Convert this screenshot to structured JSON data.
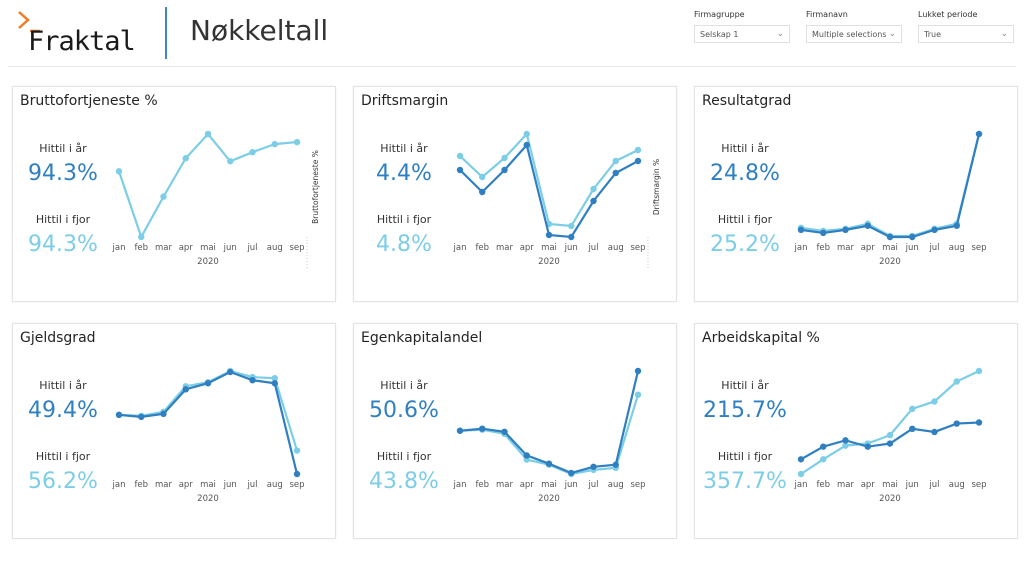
{
  "header": {
    "logo": "Fraktal",
    "title": "Nøkkeltall"
  },
  "slicers": [
    {
      "label": "Firmagruppe",
      "value": "Selskap 1"
    },
    {
      "label": "Firmanavn",
      "value": "Multiple selections"
    },
    {
      "label": "Lukket periode",
      "value": "True"
    }
  ],
  "colors": {
    "this_year": "#2F7FC1",
    "last_year": "#7CCDE6",
    "accent": "#F07C24"
  },
  "kpi_labels": {
    "this_year": "Hittil i år",
    "last_year": "Hittil i fjor"
  },
  "chart_data": [
    {
      "type": "line",
      "title": "Bruttofortjeneste %",
      "ylabel": "Bruttofortjeneste %",
      "xlabel": "2020",
      "categories": [
        "jan",
        "feb",
        "mar",
        "apr",
        "mai",
        "jun",
        "jul",
        "aug",
        "sep"
      ],
      "kpi": {
        "this_year": "94.3%",
        "last_year": "94.3%"
      },
      "series": [
        {
          "values": [
            330,
            265,
            305,
            343,
            367,
            340,
            349,
            357,
            359
          ],
          "color": "#7CCDE6"
        }
      ]
    },
    {
      "type": "line",
      "title": "Driftsmargin",
      "ylabel": "Driftsmargin %",
      "xlabel": "2020",
      "categories": [
        "jan",
        "feb",
        "mar",
        "apr",
        "mai",
        "jun",
        "jul",
        "aug",
        "sep"
      ],
      "kpi": {
        "this_year": "4.4%",
        "last_year": "4.8%"
      },
      "series": [
        {
          "values": [
            345,
            324,
            343,
            367,
            277,
            275,
            312,
            340,
            351
          ],
          "color": "#7CCDE6"
        },
        {
          "values": [
            331,
            309,
            331,
            356,
            266,
            264,
            300,
            328,
            340
          ],
          "color": "#2F7FC1"
        }
      ]
    },
    {
      "type": "line",
      "title": "Resultatgrad",
      "ylabel": "",
      "xlabel": "2020",
      "categories": [
        "jan",
        "feb",
        "mar",
        "apr",
        "mai",
        "jun",
        "jul",
        "aug",
        "sep"
      ],
      "kpi": {
        "this_year": "24.8%",
        "last_year": "25.2%"
      },
      "series": [
        {
          "values": [
            273,
            270,
            272,
            277,
            265,
            265,
            272,
            277,
            365
          ],
          "color": "#7CCDE6"
        },
        {
          "values": [
            271,
            268,
            271,
            275,
            264,
            264,
            271,
            275,
            365
          ],
          "color": "#2F7FC1"
        }
      ]
    },
    {
      "type": "line",
      "title": "Gjeldsgrad",
      "ylabel": "",
      "xlabel": "2020",
      "categories": [
        "jan",
        "feb",
        "mar",
        "apr",
        "mai",
        "jun",
        "jul",
        "aug",
        "sep"
      ],
      "kpi": {
        "this_year": "49.4%",
        "last_year": "56.2%"
      },
      "series": [
        {
          "values": [
            89,
            88,
            92,
            117,
            121,
            132,
            126,
            125,
            54
          ],
          "color": "#7CCDE6"
        },
        {
          "values": [
            89,
            87,
            90,
            114,
            120,
            131,
            123,
            120,
            31
          ],
          "color": "#2F7FC1"
        }
      ]
    },
    {
      "type": "line",
      "title": "Egenkapitalandel",
      "ylabel": "",
      "xlabel": "2020",
      "categories": [
        "jan",
        "feb",
        "mar",
        "apr",
        "mai",
        "jun",
        "jul",
        "aug",
        "sep"
      ],
      "kpi": {
        "this_year": "50.6%",
        "last_year": "43.8%"
      },
      "series": [
        {
          "values": [
            73,
            74,
            70,
            45,
            40,
            31,
            35,
            37,
            108
          ],
          "color": "#7CCDE6"
        },
        {
          "values": [
            73,
            75,
            72,
            49,
            41,
            32,
            38,
            40,
            131
          ],
          "color": "#2F7FC1"
        }
      ]
    },
    {
      "type": "line",
      "title": "Arbeidskapital %",
      "ylabel": "",
      "xlabel": "2020",
      "categories": [
        "jan",
        "feb",
        "mar",
        "apr",
        "mai",
        "jun",
        "jul",
        "aug",
        "sep"
      ],
      "kpi": {
        "this_year": "215.7%",
        "last_year": "357.7%"
      },
      "series": [
        {
          "values": [
            31,
            45,
            58,
            60,
            68,
            93,
            100,
            119,
            129
          ],
          "color": "#7CCDE6"
        },
        {
          "values": [
            45,
            57,
            63,
            57,
            60,
            74,
            71,
            79,
            80
          ],
          "color": "#2F7FC1"
        }
      ]
    }
  ]
}
